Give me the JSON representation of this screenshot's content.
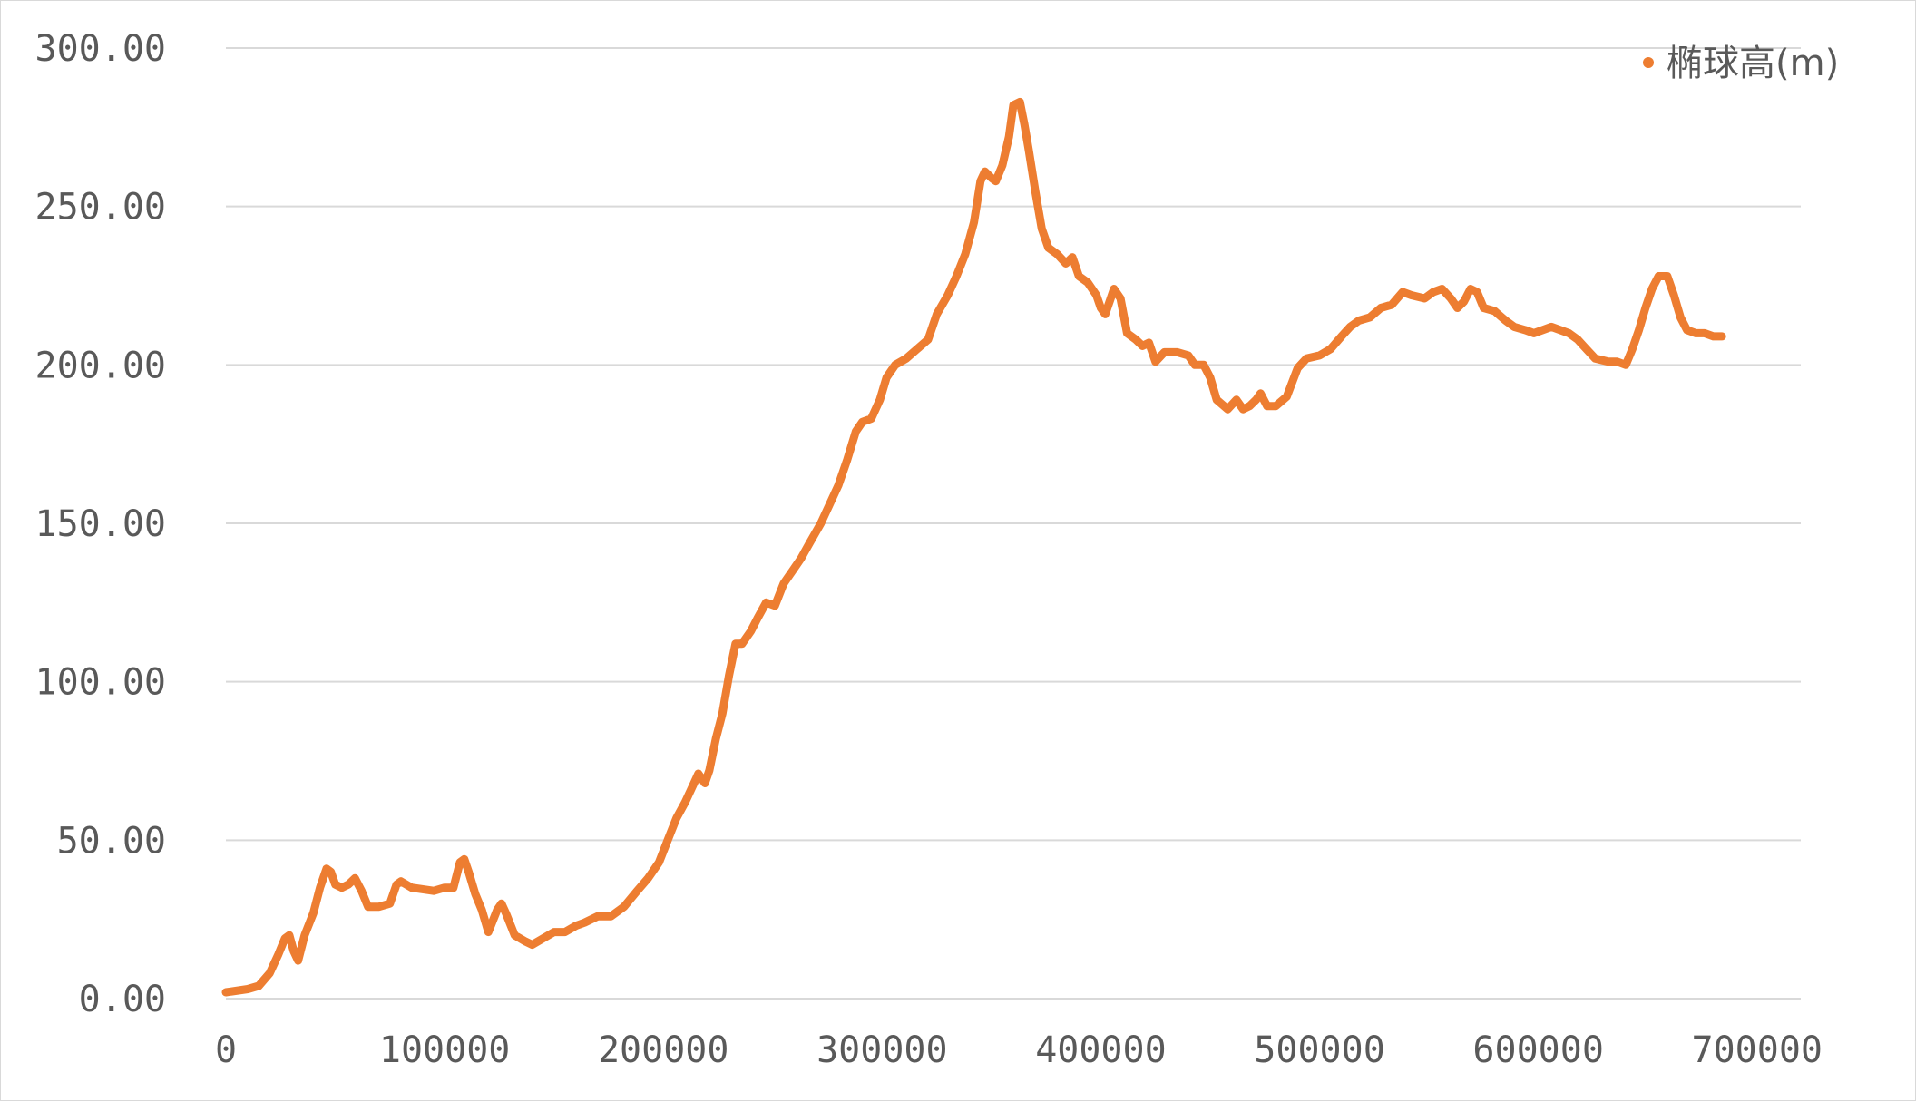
{
  "chart_data": {
    "type": "line",
    "title": "",
    "xlabel": "",
    "ylabel": "",
    "xlim": [
      0,
      720000
    ],
    "ylim": [
      0,
      300
    ],
    "x_ticks": [
      "0",
      "100000",
      "200000",
      "300000",
      "400000",
      "500000",
      "600000",
      "700000"
    ],
    "y_ticks": [
      "0.00",
      "50.00",
      "100.00",
      "150.00",
      "200.00",
      "250.00",
      "300.00"
    ],
    "grid": "horizontal",
    "legend_position": "top-right",
    "series_color": "#ED7D31",
    "series": [
      {
        "name": "椭球高(m)",
        "points": [
          [
            0,
            2
          ],
          [
            10000,
            3
          ],
          [
            15000,
            4
          ],
          [
            20000,
            8
          ],
          [
            24000,
            14
          ],
          [
            27000,
            19
          ],
          [
            29000,
            20
          ],
          [
            31000,
            15
          ],
          [
            33000,
            12
          ],
          [
            36000,
            20
          ],
          [
            40000,
            27
          ],
          [
            43000,
            35
          ],
          [
            46000,
            41
          ],
          [
            48000,
            40
          ],
          [
            50000,
            36
          ],
          [
            53000,
            35
          ],
          [
            56000,
            36
          ],
          [
            59000,
            38
          ],
          [
            62000,
            34
          ],
          [
            65000,
            29
          ],
          [
            70000,
            29
          ],
          [
            75000,
            30
          ],
          [
            78000,
            36
          ],
          [
            80000,
            37
          ],
          [
            85000,
            35
          ],
          [
            95000,
            34
          ],
          [
            100000,
            35
          ],
          [
            104000,
            35
          ],
          [
            107000,
            43
          ],
          [
            109000,
            44
          ],
          [
            111000,
            40
          ],
          [
            114000,
            33
          ],
          [
            117000,
            28
          ],
          [
            120000,
            21
          ],
          [
            124000,
            28
          ],
          [
            126000,
            30
          ],
          [
            128000,
            27
          ],
          [
            132000,
            20
          ],
          [
            137000,
            18
          ],
          [
            140000,
            17
          ],
          [
            145000,
            19
          ],
          [
            150000,
            21
          ],
          [
            155000,
            21
          ],
          [
            160000,
            23
          ],
          [
            164000,
            24
          ],
          [
            170000,
            26
          ],
          [
            176000,
            26
          ],
          [
            182000,
            29
          ],
          [
            188000,
            34
          ],
          [
            193000,
            38
          ],
          [
            198000,
            43
          ],
          [
            202000,
            50
          ],
          [
            206000,
            57
          ],
          [
            210000,
            62
          ],
          [
            214000,
            68
          ],
          [
            216000,
            71
          ],
          [
            219000,
            68
          ],
          [
            221000,
            72
          ],
          [
            224000,
            82
          ],
          [
            227000,
            90
          ],
          [
            230000,
            102
          ],
          [
            233000,
            112
          ],
          [
            236000,
            112
          ],
          [
            240000,
            116
          ],
          [
            243000,
            120
          ],
          [
            247000,
            125
          ],
          [
            251000,
            124
          ],
          [
            255000,
            131
          ],
          [
            259000,
            135
          ],
          [
            263000,
            139
          ],
          [
            267000,
            144
          ],
          [
            272000,
            150
          ],
          [
            276000,
            156
          ],
          [
            280000,
            162
          ],
          [
            284000,
            170
          ],
          [
            288000,
            179
          ],
          [
            291000,
            182
          ],
          [
            295000,
            183
          ],
          [
            299000,
            189
          ],
          [
            302000,
            196
          ],
          [
            306000,
            200
          ],
          [
            311000,
            202
          ],
          [
            316000,
            205
          ],
          [
            321000,
            208
          ],
          [
            325000,
            216
          ],
          [
            330000,
            222
          ],
          [
            334000,
            228
          ],
          [
            338000,
            235
          ],
          [
            342000,
            245
          ],
          [
            345000,
            258
          ],
          [
            347000,
            261
          ],
          [
            350000,
            259
          ],
          [
            352000,
            258
          ],
          [
            355000,
            263
          ],
          [
            358000,
            272
          ],
          [
            360000,
            282
          ],
          [
            363000,
            283
          ],
          [
            365000,
            276
          ],
          [
            367000,
            268
          ],
          [
            370000,
            255
          ],
          [
            373000,
            243
          ],
          [
            376000,
            237
          ],
          [
            380000,
            235
          ],
          [
            384000,
            232
          ],
          [
            387000,
            234
          ],
          [
            390000,
            228
          ],
          [
            394000,
            226
          ],
          [
            398000,
            222
          ],
          [
            400000,
            218
          ],
          [
            402000,
            216
          ],
          [
            406000,
            224
          ],
          [
            409000,
            221
          ],
          [
            412000,
            210
          ],
          [
            416000,
            208
          ],
          [
            419000,
            206
          ],
          [
            422000,
            207
          ],
          [
            425000,
            201
          ],
          [
            429000,
            204
          ],
          [
            435000,
            204
          ],
          [
            440000,
            203
          ],
          [
            443000,
            200
          ],
          [
            447000,
            200
          ],
          [
            450000,
            196
          ],
          [
            453000,
            189
          ],
          [
            458000,
            186
          ],
          [
            462000,
            189
          ],
          [
            465000,
            186
          ],
          [
            468000,
            187
          ],
          [
            471000,
            189
          ],
          [
            473000,
            191
          ],
          [
            476000,
            187
          ],
          [
            480000,
            187
          ],
          [
            485000,
            190
          ],
          [
            490000,
            199
          ],
          [
            494000,
            202
          ],
          [
            500000,
            203
          ],
          [
            505000,
            205
          ],
          [
            510000,
            209
          ],
          [
            514000,
            212
          ],
          [
            518000,
            214
          ],
          [
            523000,
            215
          ],
          [
            528000,
            218
          ],
          [
            533000,
            219
          ],
          [
            538000,
            223
          ],
          [
            542000,
            222
          ],
          [
            548000,
            221
          ],
          [
            552000,
            223
          ],
          [
            556000,
            224
          ],
          [
            560000,
            221
          ],
          [
            563000,
            218
          ],
          [
            566000,
            220
          ],
          [
            569000,
            224
          ],
          [
            572000,
            223
          ],
          [
            575000,
            218
          ],
          [
            580000,
            217
          ],
          [
            585000,
            214
          ],
          [
            589000,
            212
          ],
          [
            594000,
            211
          ],
          [
            598000,
            210
          ],
          [
            602000,
            211
          ],
          [
            606000,
            212
          ],
          [
            610000,
            211
          ],
          [
            614000,
            210
          ],
          [
            618000,
            208
          ],
          [
            622000,
            205
          ],
          [
            626000,
            202
          ],
          [
            632000,
            201
          ],
          [
            636000,
            201
          ],
          [
            640000,
            200
          ],
          [
            643000,
            205
          ],
          [
            646000,
            211
          ],
          [
            649000,
            218
          ],
          [
            652000,
            224
          ],
          [
            655000,
            228
          ],
          [
            659000,
            228
          ],
          [
            662000,
            222
          ],
          [
            665000,
            215
          ],
          [
            668000,
            211
          ],
          [
            672000,
            210
          ],
          [
            676000,
            210
          ],
          [
            680000,
            209
          ],
          [
            684000,
            209
          ]
        ]
      }
    ]
  }
}
